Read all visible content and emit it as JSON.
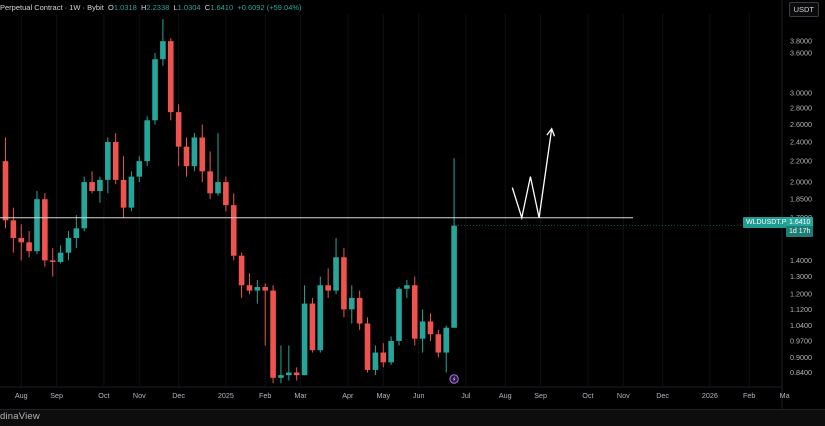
{
  "header": {
    "symbol_prefix": "Perpetual Contract · 1W · Bybit",
    "open_label": "O",
    "open": "1.0318",
    "high_label": "H",
    "high": "2.2338",
    "low_label": "L",
    "low": "1.0304",
    "close_label": "C",
    "close": "1.6410",
    "change": "+0.6092 (+59.04%)"
  },
  "currency_label": "USDT",
  "brand": "dinaView",
  "price_tag": {
    "symbol": "WLDUSDT.P",
    "price": "1.6410",
    "countdown": "1d 17h"
  },
  "colors": {
    "up": "#26a69a",
    "down": "#ef5350",
    "background": "#000000",
    "projection": "#ffffff",
    "support_line": "#d9d9d9"
  },
  "chart_data": {
    "type": "candlestick",
    "y_scale": "log",
    "ylim": [
      0.79,
      4.3
    ],
    "y_ticks": [
      {
        "value": 3.8,
        "label": "3.8000"
      },
      {
        "value": 3.6,
        "label": "3.6000"
      },
      {
        "value": 3.0,
        "label": "3.0000"
      },
      {
        "value": 2.8,
        "label": "2.8000"
      },
      {
        "value": 2.6,
        "label": "2.6000"
      },
      {
        "value": 2.4,
        "label": "2.4000"
      },
      {
        "value": 2.2,
        "label": "2.2000"
      },
      {
        "value": 2.0,
        "label": "2.0000"
      },
      {
        "value": 1.85,
        "label": "1.8500"
      },
      {
        "value": 1.7,
        "label": "1.7000"
      },
      {
        "value": 1.4,
        "label": "1.4000"
      },
      {
        "value": 1.3,
        "label": "1.3000"
      },
      {
        "value": 1.2,
        "label": "1.2000"
      },
      {
        "value": 1.12,
        "label": "1.1200"
      },
      {
        "value": 1.04,
        "label": "1.0400"
      },
      {
        "value": 0.97,
        "label": "0.9700"
      },
      {
        "value": 0.9,
        "label": "0.9000"
      },
      {
        "value": 0.84,
        "label": "0.8400"
      }
    ],
    "x_ticks": [
      {
        "index": 2,
        "label": "Aug"
      },
      {
        "index": 6.5,
        "label": "Sep"
      },
      {
        "index": 12.5,
        "label": "Oct"
      },
      {
        "index": 17,
        "label": "Nov"
      },
      {
        "index": 22,
        "label": "Dec"
      },
      {
        "index": 28,
        "label": "2025"
      },
      {
        "index": 33,
        "label": "Feb"
      },
      {
        "index": 37.5,
        "label": "Mar"
      },
      {
        "index": 43.5,
        "label": "Apr"
      },
      {
        "index": 48,
        "label": "May"
      },
      {
        "index": 52.5,
        "label": "Jun"
      },
      {
        "index": 58.5,
        "label": "Jul"
      },
      {
        "index": 63.5,
        "label": "Aug"
      },
      {
        "index": 68,
        "label": "Sep"
      },
      {
        "index": 74,
        "label": "Oct"
      },
      {
        "index": 78.5,
        "label": "Nov"
      },
      {
        "index": 83.5,
        "label": "Dec"
      },
      {
        "index": 89.5,
        "label": "2026"
      },
      {
        "index": 94.5,
        "label": "Feb"
      },
      {
        "index": 99,
        "label": "Ma"
      }
    ],
    "horizontal_line": 1.7,
    "candles": [
      {
        "o": 2.2,
        "h": 2.45,
        "l": 1.62,
        "c": 1.68
      },
      {
        "o": 1.68,
        "h": 1.78,
        "l": 1.45,
        "c": 1.55
      },
      {
        "o": 1.55,
        "h": 1.65,
        "l": 1.4,
        "c": 1.52
      },
      {
        "o": 1.52,
        "h": 1.6,
        "l": 1.42,
        "c": 1.46
      },
      {
        "o": 1.46,
        "h": 1.92,
        "l": 1.44,
        "c": 1.85
      },
      {
        "o": 1.85,
        "h": 1.9,
        "l": 1.36,
        "c": 1.4
      },
      {
        "o": 1.4,
        "h": 1.48,
        "l": 1.3,
        "c": 1.39
      },
      {
        "o": 1.39,
        "h": 1.5,
        "l": 1.38,
        "c": 1.45
      },
      {
        "o": 1.45,
        "h": 1.6,
        "l": 1.4,
        "c": 1.55
      },
      {
        "o": 1.55,
        "h": 1.72,
        "l": 1.48,
        "c": 1.62
      },
      {
        "o": 1.62,
        "h": 2.05,
        "l": 1.6,
        "c": 2.0
      },
      {
        "o": 2.0,
        "h": 2.1,
        "l": 1.9,
        "c": 1.92
      },
      {
        "o": 1.92,
        "h": 2.05,
        "l": 1.82,
        "c": 2.02
      },
      {
        "o": 2.02,
        "h": 2.45,
        "l": 1.9,
        "c": 2.4
      },
      {
        "o": 2.4,
        "h": 2.5,
        "l": 1.98,
        "c": 2.02
      },
      {
        "o": 2.02,
        "h": 2.25,
        "l": 1.7,
        "c": 1.78
      },
      {
        "o": 1.78,
        "h": 2.1,
        "l": 1.75,
        "c": 2.05
      },
      {
        "o": 2.05,
        "h": 2.25,
        "l": 2.0,
        "c": 2.2
      },
      {
        "o": 2.2,
        "h": 2.7,
        "l": 2.15,
        "c": 2.65
      },
      {
        "o": 2.65,
        "h": 3.6,
        "l": 2.6,
        "c": 3.5
      },
      {
        "o": 3.5,
        "h": 4.2,
        "l": 3.4,
        "c": 3.8
      },
      {
        "o": 3.8,
        "h": 3.85,
        "l": 2.65,
        "c": 2.75
      },
      {
        "o": 2.75,
        "h": 2.85,
        "l": 2.15,
        "c": 2.35
      },
      {
        "o": 2.35,
        "h": 2.45,
        "l": 2.05,
        "c": 2.15
      },
      {
        "o": 2.15,
        "h": 2.5,
        "l": 2.1,
        "c": 2.45
      },
      {
        "o": 2.45,
        "h": 2.6,
        "l": 2.0,
        "c": 2.1
      },
      {
        "o": 2.1,
        "h": 2.3,
        "l": 1.85,
        "c": 1.9
      },
      {
        "o": 1.9,
        "h": 2.5,
        "l": 1.88,
        "c": 2.0
      },
      {
        "o": 2.0,
        "h": 2.05,
        "l": 1.75,
        "c": 1.8
      },
      {
        "o": 1.8,
        "h": 1.9,
        "l": 1.4,
        "c": 1.43
      },
      {
        "o": 1.43,
        "h": 1.45,
        "l": 1.18,
        "c": 1.25
      },
      {
        "o": 1.25,
        "h": 1.32,
        "l": 1.2,
        "c": 1.22
      },
      {
        "o": 1.22,
        "h": 1.28,
        "l": 1.15,
        "c": 1.24
      },
      {
        "o": 1.24,
        "h": 1.26,
        "l": 0.95,
        "c": 1.22
      },
      {
        "o": 1.22,
        "h": 1.25,
        "l": 0.8,
        "c": 0.82
      },
      {
        "o": 0.82,
        "h": 0.95,
        "l": 0.8,
        "c": 0.83
      },
      {
        "o": 0.83,
        "h": 0.95,
        "l": 0.81,
        "c": 0.84
      },
      {
        "o": 0.84,
        "h": 0.86,
        "l": 0.81,
        "c": 0.83
      },
      {
        "o": 0.83,
        "h": 1.25,
        "l": 0.83,
        "c": 1.15
      },
      {
        "o": 1.15,
        "h": 1.18,
        "l": 0.92,
        "c": 0.93
      },
      {
        "o": 0.93,
        "h": 1.3,
        "l": 0.92,
        "c": 1.25
      },
      {
        "o": 1.25,
        "h": 1.35,
        "l": 1.18,
        "c": 1.22
      },
      {
        "o": 1.22,
        "h": 1.55,
        "l": 1.2,
        "c": 1.42
      },
      {
        "o": 1.42,
        "h": 1.48,
        "l": 1.08,
        "c": 1.12
      },
      {
        "o": 1.12,
        "h": 1.25,
        "l": 1.05,
        "c": 1.18
      },
      {
        "o": 1.18,
        "h": 1.22,
        "l": 1.02,
        "c": 1.05
      },
      {
        "o": 1.05,
        "h": 1.08,
        "l": 0.84,
        "c": 0.85
      },
      {
        "o": 0.85,
        "h": 0.95,
        "l": 0.83,
        "c": 0.92
      },
      {
        "o": 0.92,
        "h": 0.96,
        "l": 0.86,
        "c": 0.88
      },
      {
        "o": 0.88,
        "h": 0.99,
        "l": 0.87,
        "c": 0.97
      },
      {
        "o": 0.97,
        "h": 1.24,
        "l": 0.95,
        "c": 1.23
      },
      {
        "o": 1.23,
        "h": 1.28,
        "l": 1.18,
        "c": 1.25
      },
      {
        "o": 1.25,
        "h": 1.3,
        "l": 0.95,
        "c": 0.98
      },
      {
        "o": 0.98,
        "h": 1.12,
        "l": 0.92,
        "c": 1.06
      },
      {
        "o": 1.06,
        "h": 1.1,
        "l": 0.97,
        "c": 1.0
      },
      {
        "o": 1.0,
        "h": 1.02,
        "l": 0.9,
        "c": 0.92
      },
      {
        "o": 0.92,
        "h": 1.04,
        "l": 0.84,
        "c": 1.03
      },
      {
        "o": 1.03,
        "h": 2.23,
        "l": 1.03,
        "c": 1.64
      }
    ],
    "projection_path": [
      {
        "index": 64.4,
        "value": 1.95
      },
      {
        "index": 65.6,
        "value": 1.7
      },
      {
        "index": 66.7,
        "value": 2.05
      },
      {
        "index": 67.8,
        "value": 1.7
      },
      {
        "index": 69.4,
        "value": 2.55
      }
    ]
  }
}
